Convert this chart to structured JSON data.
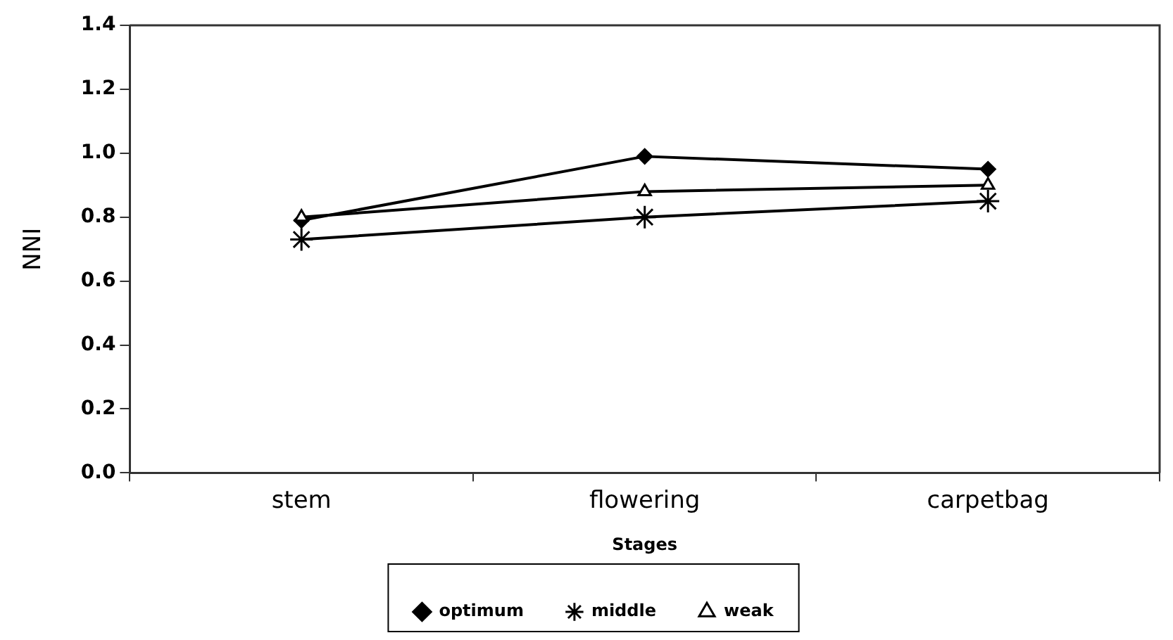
{
  "chart_data": {
    "type": "line",
    "xlabel": "Stages",
    "ylabel": "NNI",
    "categories": [
      "stem",
      "flowering",
      "carpetbag"
    ],
    "series": [
      {
        "name": "optimum",
        "color": "#000000",
        "marker": "diamond",
        "values": [
          0.79,
          0.99,
          0.95
        ]
      },
      {
        "name": "middle",
        "color": "#000000",
        "marker": "cross",
        "values": [
          0.73,
          0.8,
          0.85
        ]
      },
      {
        "name": "weak",
        "color": "#000000",
        "marker": "triangle",
        "values": [
          0.8,
          0.88,
          0.9
        ]
      }
    ],
    "ylim": [
      0,
      1.4
    ],
    "yticks": [
      {
        "value": 0,
        "label": "0.0"
      },
      0.2,
      0.4,
      0.6,
      0.8,
      {
        "value": 1,
        "label": "1.0"
      },
      1.2,
      1.4
    ],
    "grid": false,
    "legend": "bottom",
    "line_style": "solid"
  }
}
